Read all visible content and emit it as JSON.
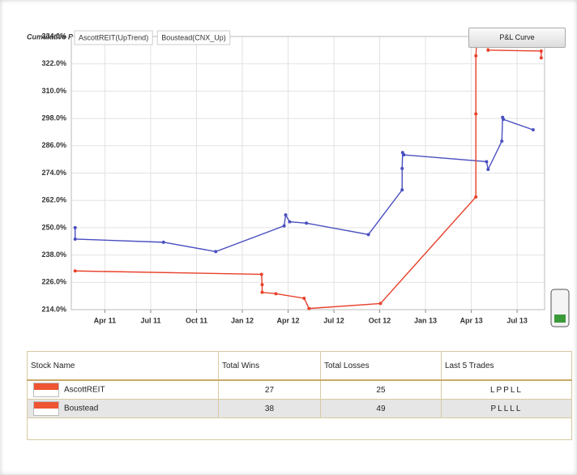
{
  "chart_data": {
    "type": "line",
    "title": "Cumulative P & L Curve",
    "xlim": [
      0.8,
      31.8
    ],
    "xticks": [
      {
        "value": 3,
        "label": "Apr 11"
      },
      {
        "value": 6,
        "label": "Jul 11"
      },
      {
        "value": 9,
        "label": "Oct 11"
      },
      {
        "value": 12,
        "label": "Jan 12"
      },
      {
        "value": 15,
        "label": "Apr 12"
      },
      {
        "value": 18,
        "label": "Jul 12"
      },
      {
        "value": 21,
        "label": "Oct 12"
      },
      {
        "value": 24,
        "label": "Jan 13"
      },
      {
        "value": 27,
        "label": "Apr 13"
      },
      {
        "value": 30,
        "label": "Jul 13"
      }
    ],
    "ylim": [
      214,
      334
    ],
    "yticks": [
      {
        "value": 214,
        "label": "214.0%"
      },
      {
        "value": 226,
        "label": "226.0%"
      },
      {
        "value": 238,
        "label": "238.0%"
      },
      {
        "value": 250,
        "label": "250.0%"
      },
      {
        "value": 262,
        "label": "262.0%"
      },
      {
        "value": 274,
        "label": "274.0%"
      },
      {
        "value": 286,
        "label": "286.0%"
      },
      {
        "value": 298,
        "label": "298.0%"
      },
      {
        "value": 310,
        "label": "310.0%"
      },
      {
        "value": 322,
        "label": "322.0%"
      },
      {
        "value": 334,
        "label": "334.0%"
      }
    ],
    "grid": true,
    "legend": "top-left",
    "series": [
      {
        "name": "AscottREIT(UpTrend)",
        "color": "#4a4fc0",
        "x": [
          1.05,
          1.05,
          6.84,
          10.26,
          14.74,
          14.84,
          15.1,
          16.2,
          20.26,
          22.47,
          22.47,
          22.5,
          22.58,
          28,
          28.1,
          29,
          29.05,
          29.1,
          31.05
        ],
        "values": [
          250,
          245,
          243.6,
          239.5,
          250.8,
          255.6,
          252.6,
          252,
          247,
          266.6,
          276,
          283,
          282,
          279,
          275.6,
          288,
          298.5,
          297.6,
          293
        ]
      },
      {
        "name": "Boustead(CNX_Up)",
        "color": "#e8402a",
        "x": [
          1.05,
          13.26,
          13.3,
          13.3,
          14.2,
          16.05,
          16.37,
          21.05,
          27.3,
          27.3,
          27.3,
          27.37,
          28.05,
          28.1,
          31.58,
          31.58
        ],
        "values": [
          231,
          229.5,
          225,
          221.6,
          221,
          219,
          214.5,
          216.7,
          263.5,
          300,
          325.5,
          333.5,
          332,
          328,
          327.6,
          324.6
        ]
      }
    ]
  },
  "button": "P&L Curve",
  "table": {
    "headers": [
      "Stock Name",
      "Total Wins",
      "Total Losses",
      "Last 5 Trades"
    ],
    "rows": [
      [
        "AscottREIT",
        "27",
        "25",
        "LPPLL"
      ],
      [
        "Boustead",
        "38",
        "49",
        "PLLLL"
      ]
    ]
  }
}
